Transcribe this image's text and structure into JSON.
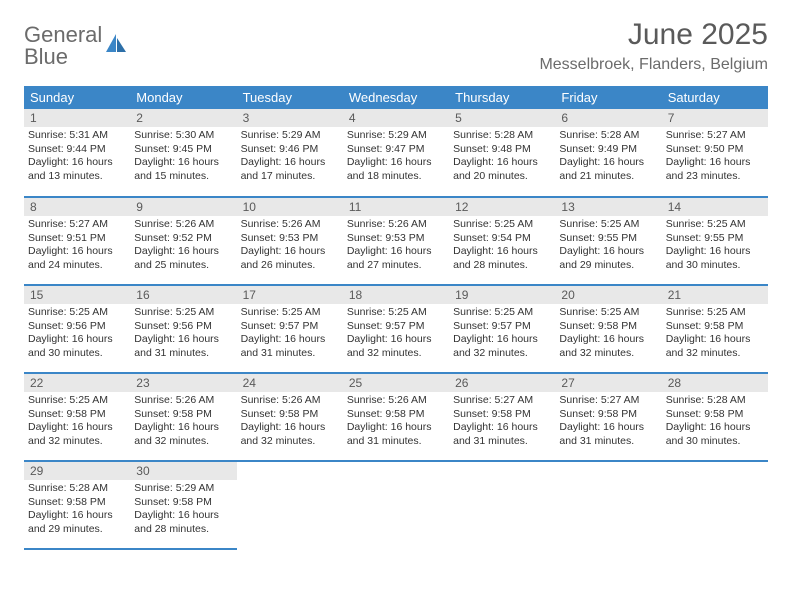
{
  "brand": {
    "line1": "General",
    "line2": "Blue"
  },
  "title": "June 2025",
  "location": "Messelbroek, Flanders, Belgium",
  "colors": {
    "header_bg": "#3b86c7",
    "header_text": "#ffffff",
    "daynum_bg": "#e8e8e8",
    "border": "#3b86c7",
    "text": "#333333",
    "logo_gray": "#6b6b6b",
    "logo_blue": "#3b86c7"
  },
  "weekdays": [
    "Sunday",
    "Monday",
    "Tuesday",
    "Wednesday",
    "Thursday",
    "Friday",
    "Saturday"
  ],
  "days": [
    {
      "n": 1,
      "sr": "5:31 AM",
      "ss": "9:44 PM",
      "dl": "16 hours and 13 minutes."
    },
    {
      "n": 2,
      "sr": "5:30 AM",
      "ss": "9:45 PM",
      "dl": "16 hours and 15 minutes."
    },
    {
      "n": 3,
      "sr": "5:29 AM",
      "ss": "9:46 PM",
      "dl": "16 hours and 17 minutes."
    },
    {
      "n": 4,
      "sr": "5:29 AM",
      "ss": "9:47 PM",
      "dl": "16 hours and 18 minutes."
    },
    {
      "n": 5,
      "sr": "5:28 AM",
      "ss": "9:48 PM",
      "dl": "16 hours and 20 minutes."
    },
    {
      "n": 6,
      "sr": "5:28 AM",
      "ss": "9:49 PM",
      "dl": "16 hours and 21 minutes."
    },
    {
      "n": 7,
      "sr": "5:27 AM",
      "ss": "9:50 PM",
      "dl": "16 hours and 23 minutes."
    },
    {
      "n": 8,
      "sr": "5:27 AM",
      "ss": "9:51 PM",
      "dl": "16 hours and 24 minutes."
    },
    {
      "n": 9,
      "sr": "5:26 AM",
      "ss": "9:52 PM",
      "dl": "16 hours and 25 minutes."
    },
    {
      "n": 10,
      "sr": "5:26 AM",
      "ss": "9:53 PM",
      "dl": "16 hours and 26 minutes."
    },
    {
      "n": 11,
      "sr": "5:26 AM",
      "ss": "9:53 PM",
      "dl": "16 hours and 27 minutes."
    },
    {
      "n": 12,
      "sr": "5:25 AM",
      "ss": "9:54 PM",
      "dl": "16 hours and 28 minutes."
    },
    {
      "n": 13,
      "sr": "5:25 AM",
      "ss": "9:55 PM",
      "dl": "16 hours and 29 minutes."
    },
    {
      "n": 14,
      "sr": "5:25 AM",
      "ss": "9:55 PM",
      "dl": "16 hours and 30 minutes."
    },
    {
      "n": 15,
      "sr": "5:25 AM",
      "ss": "9:56 PM",
      "dl": "16 hours and 30 minutes."
    },
    {
      "n": 16,
      "sr": "5:25 AM",
      "ss": "9:56 PM",
      "dl": "16 hours and 31 minutes."
    },
    {
      "n": 17,
      "sr": "5:25 AM",
      "ss": "9:57 PM",
      "dl": "16 hours and 31 minutes."
    },
    {
      "n": 18,
      "sr": "5:25 AM",
      "ss": "9:57 PM",
      "dl": "16 hours and 32 minutes."
    },
    {
      "n": 19,
      "sr": "5:25 AM",
      "ss": "9:57 PM",
      "dl": "16 hours and 32 minutes."
    },
    {
      "n": 20,
      "sr": "5:25 AM",
      "ss": "9:58 PM",
      "dl": "16 hours and 32 minutes."
    },
    {
      "n": 21,
      "sr": "5:25 AM",
      "ss": "9:58 PM",
      "dl": "16 hours and 32 minutes."
    },
    {
      "n": 22,
      "sr": "5:25 AM",
      "ss": "9:58 PM",
      "dl": "16 hours and 32 minutes."
    },
    {
      "n": 23,
      "sr": "5:26 AM",
      "ss": "9:58 PM",
      "dl": "16 hours and 32 minutes."
    },
    {
      "n": 24,
      "sr": "5:26 AM",
      "ss": "9:58 PM",
      "dl": "16 hours and 32 minutes."
    },
    {
      "n": 25,
      "sr": "5:26 AM",
      "ss": "9:58 PM",
      "dl": "16 hours and 31 minutes."
    },
    {
      "n": 26,
      "sr": "5:27 AM",
      "ss": "9:58 PM",
      "dl": "16 hours and 31 minutes."
    },
    {
      "n": 27,
      "sr": "5:27 AM",
      "ss": "9:58 PM",
      "dl": "16 hours and 31 minutes."
    },
    {
      "n": 28,
      "sr": "5:28 AM",
      "ss": "9:58 PM",
      "dl": "16 hours and 30 minutes."
    },
    {
      "n": 29,
      "sr": "5:28 AM",
      "ss": "9:58 PM",
      "dl": "16 hours and 29 minutes."
    },
    {
      "n": 30,
      "sr": "5:29 AM",
      "ss": "9:58 PM",
      "dl": "16 hours and 28 minutes."
    }
  ],
  "labels": {
    "sunrise": "Sunrise: ",
    "sunset": "Sunset: ",
    "daylight": "Daylight: "
  }
}
